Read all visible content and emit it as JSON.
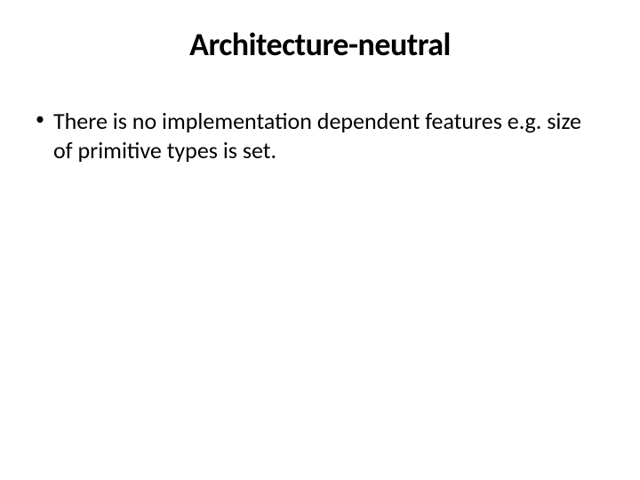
{
  "slide": {
    "title": "Architecture-neutral",
    "bullets": [
      {
        "text": "There is no implementation dependent features e.g. size of primitive types is set."
      }
    ]
  },
  "styling": {
    "background_color": "#ffffff",
    "title_color": "#000000",
    "title_fontsize": 36,
    "title_fontweight": 700,
    "body_color": "#000000",
    "body_fontsize": 26,
    "font_family": "Calibri"
  }
}
